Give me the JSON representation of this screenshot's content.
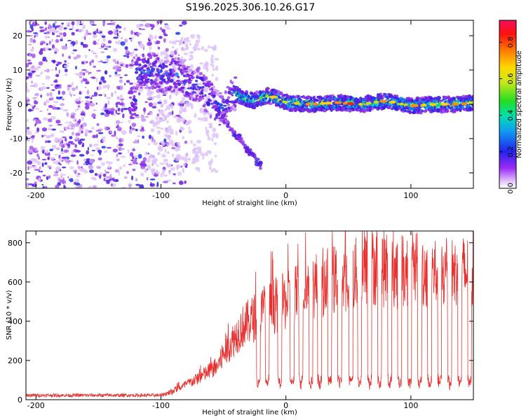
{
  "title": "S196.2025.306.10.26.G17",
  "chart_data": [
    {
      "type": "heatmap",
      "title": "S196.2025.306.10.26.G17",
      "xlabel": "Height of straight line (km)",
      "ylabel": "Frequency (Hz)",
      "xlim": [
        -208,
        150
      ],
      "ylim": [
        -24.5,
        24.5
      ],
      "xticks": [
        "-200",
        "-100",
        "0",
        "100"
      ],
      "yticks": [
        "20",
        "10",
        "0",
        "-10",
        "-20"
      ],
      "ridge_ridge_points": [
        {
          "x": -120,
          "y": 9.5
        },
        {
          "x": -105,
          "y": 9.5
        },
        {
          "x": -95,
          "y": 8
        },
        {
          "x": -88,
          "y": 9
        },
        {
          "x": -78,
          "y": 6
        },
        {
          "x": -70,
          "y": 6
        },
        {
          "x": -62,
          "y": 2
        },
        {
          "x": -55,
          "y": -1
        },
        {
          "x": -48,
          "y": -1
        },
        {
          "x": -42,
          "y": 3.5
        },
        {
          "x": -35,
          "y": 2
        },
        {
          "x": -25,
          "y": 1
        },
        {
          "x": -15,
          "y": 2.5
        },
        {
          "x": -8,
          "y": 2
        },
        {
          "x": 0,
          "y": 0.5
        },
        {
          "x": 20,
          "y": 0
        },
        {
          "x": 40,
          "y": 0.5
        },
        {
          "x": 60,
          "y": 0
        },
        {
          "x": 80,
          "y": 1
        },
        {
          "x": 100,
          "y": -0.5
        },
        {
          "x": 120,
          "y": 0
        },
        {
          "x": 140,
          "y": 0
        },
        {
          "x": 150,
          "y": 0.5
        }
      ],
      "colorbar": {
        "label": "Normalized spectral amplitude",
        "ticks": [
          "0.0",
          "0.2",
          "0.4",
          "0.6",
          "0.8"
        ],
        "range": [
          0,
          0.92
        ]
      }
    },
    {
      "type": "line",
      "xlabel": "Height of straight line (km)",
      "ylabel": "SNR (10 * v/v)",
      "xlim": [
        -208,
        150
      ],
      "ylim": [
        0,
        860
      ],
      "xticks": [
        "-200",
        "-100",
        "0",
        "100"
      ],
      "yticks": [
        "0",
        "200",
        "400",
        "600",
        "800"
      ],
      "color": "#e8302e",
      "envelope": [
        {
          "x": -208,
          "y": 25
        },
        {
          "x": -100,
          "y": 25
        },
        {
          "x": -85,
          "y": 60
        },
        {
          "x": -70,
          "y": 110
        },
        {
          "x": -55,
          "y": 170
        },
        {
          "x": -45,
          "y": 280
        },
        {
          "x": -35,
          "y": 370
        },
        {
          "x": -25,
          "y": 420
        },
        {
          "x": -10,
          "y": 480
        },
        {
          "x": 0,
          "y": 500
        },
        {
          "x": 15,
          "y": 560
        },
        {
          "x": 30,
          "y": 600
        },
        {
          "x": 50,
          "y": 620
        },
        {
          "x": 70,
          "y": 680
        },
        {
          "x": 90,
          "y": 650
        },
        {
          "x": 110,
          "y": 660
        },
        {
          "x": 130,
          "y": 640
        },
        {
          "x": 150,
          "y": 650
        }
      ],
      "dropouts": [
        -22,
        -15,
        -5,
        5,
        12,
        20,
        27,
        35,
        43,
        52,
        59,
        67,
        75,
        83,
        91,
        99,
        107,
        115,
        123,
        131,
        139,
        147
      ],
      "dropout_level": 120
    }
  ]
}
